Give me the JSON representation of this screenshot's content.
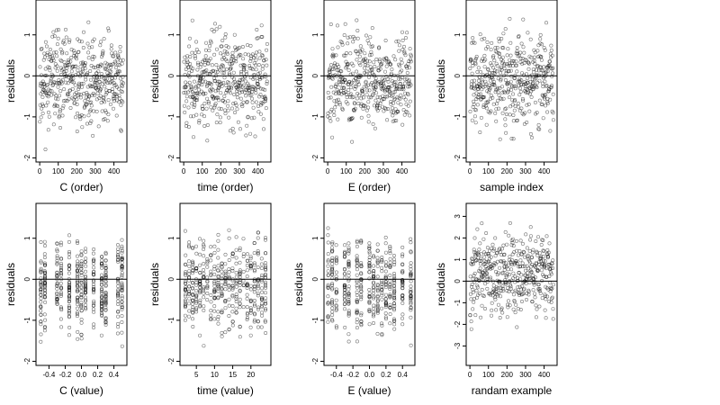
{
  "chart_data": [
    {
      "type": "scatter",
      "xlabel": "C (order)",
      "ylabel": "residuals",
      "xlim": [
        -20,
        470
      ],
      "ylim": [
        -2.1,
        1.85
      ],
      "xticks": [
        0,
        100,
        200,
        300,
        400
      ],
      "xtick_labels": [
        "0",
        "100",
        "200",
        "300",
        "400"
      ],
      "yticks": [
        -2,
        -1,
        0,
        1
      ],
      "ytick_labels": [
        "-2",
        "-1",
        "0",
        "1"
      ],
      "hline": 0,
      "x_kind": "index",
      "n": 450,
      "y_range": [
        -2.0,
        1.75
      ],
      "seed": 11
    },
    {
      "type": "scatter",
      "xlabel": "time (order)",
      "ylabel": "residuals",
      "xlim": [
        -20,
        470
      ],
      "ylim": [
        -2.1,
        1.85
      ],
      "xticks": [
        0,
        100,
        200,
        300,
        400
      ],
      "xtick_labels": [
        "0",
        "100",
        "200",
        "300",
        "400"
      ],
      "yticks": [
        -2,
        -1,
        0,
        1
      ],
      "ytick_labels": [
        "-2",
        "-1",
        "0",
        "1"
      ],
      "hline": 0,
      "x_kind": "index",
      "n": 450,
      "y_range": [
        -2.0,
        1.75
      ],
      "seed": 23
    },
    {
      "type": "scatter",
      "xlabel": "E (order)",
      "ylabel": "residuals",
      "xlim": [
        -20,
        470
      ],
      "ylim": [
        -2.1,
        1.85
      ],
      "xticks": [
        0,
        100,
        200,
        300,
        400
      ],
      "xtick_labels": [
        "0",
        "100",
        "200",
        "300",
        "400"
      ],
      "yticks": [
        -2,
        -1,
        0,
        1
      ],
      "ytick_labels": [
        "-2",
        "-1",
        "0",
        "1"
      ],
      "hline": 0,
      "x_kind": "index",
      "n": 450,
      "y_range": [
        -2.0,
        1.75
      ],
      "seed": 37
    },
    {
      "type": "scatter",
      "xlabel": "sample index",
      "ylabel": "residuals",
      "xlim": [
        -20,
        470
      ],
      "ylim": [
        -2.1,
        1.85
      ],
      "xticks": [
        0,
        100,
        200,
        300,
        400
      ],
      "xtick_labels": [
        "0",
        "100",
        "200",
        "300",
        "400"
      ],
      "yticks": [
        -2,
        -1,
        0,
        1
      ],
      "ytick_labels": [
        "-2",
        "-1",
        "0",
        "1"
      ],
      "hline": 0,
      "x_kind": "index",
      "n": 450,
      "y_range": [
        -2.0,
        1.75
      ],
      "seed": 41
    },
    {
      "type": "scatter",
      "xlabel": "C (value)",
      "ylabel": "residuals",
      "xlim": [
        -0.56,
        0.56
      ],
      "ylim": [
        -2.1,
        1.85
      ],
      "xticks": [
        -0.4,
        -0.2,
        0.0,
        0.2,
        0.4
      ],
      "xtick_labels": [
        "-0.4",
        "-0.2",
        "0.0",
        "0.2",
        "0.4"
      ],
      "yticks": [
        -2,
        -1,
        0,
        1
      ],
      "ytick_labels": [
        "-2",
        "-1",
        "0",
        "1"
      ],
      "hline": 0,
      "x_kind": "discrete",
      "x_levels": [
        -0.5,
        -0.45,
        -0.3,
        -0.25,
        -0.15,
        -0.05,
        0.0,
        0.05,
        0.15,
        0.25,
        0.3,
        0.45,
        0.5
      ],
      "n": 450,
      "y_range": [
        -2.0,
        1.75
      ],
      "seed": 53
    },
    {
      "type": "scatter",
      "xlabel": "time (value)",
      "ylabel": "residuals",
      "xlim": [
        0.5,
        25.5
      ],
      "ylim": [
        -2.1,
        1.85
      ],
      "xticks": [
        5,
        10,
        15,
        20
      ],
      "xtick_labels": [
        "5",
        "10",
        "15",
        "20"
      ],
      "yticks": [
        -2,
        -1,
        0,
        1
      ],
      "ytick_labels": [
        "-2",
        "-1",
        "0",
        "1"
      ],
      "hline": 0,
      "x_kind": "discrete",
      "x_levels": [
        2,
        3,
        4,
        5,
        6,
        7,
        8,
        9,
        10,
        11,
        12,
        13,
        14,
        15,
        16,
        17,
        18,
        19,
        20,
        21,
        22,
        23,
        24
      ],
      "n": 450,
      "y_range": [
        -2.0,
        1.75
      ],
      "seed": 67
    },
    {
      "type": "scatter",
      "xlabel": "E (value)",
      "ylabel": "residuals",
      "xlim": [
        -0.55,
        0.55
      ],
      "ylim": [
        -2.1,
        1.85
      ],
      "xticks": [
        -0.4,
        -0.2,
        0.0,
        0.2,
        0.4
      ],
      "xtick_labels": [
        "-0.4",
        "-0.2",
        "0.0",
        "0.2",
        "0.4"
      ],
      "yticks": [
        -2,
        -1,
        0,
        1
      ],
      "ytick_labels": [
        "-2",
        "-1",
        "0",
        "1"
      ],
      "hline": 0,
      "x_kind": "discrete",
      "x_levels": [
        -0.5,
        -0.45,
        -0.4,
        -0.3,
        -0.25,
        -0.15,
        -0.1,
        0.0,
        0.05,
        0.1,
        0.15,
        0.2,
        0.25,
        0.3,
        0.4,
        0.5
      ],
      "n": 450,
      "y_range": [
        -2.0,
        1.75
      ],
      "seed": 79
    },
    {
      "type": "scatter",
      "xlabel": "randam example",
      "ylabel": "residuals",
      "xlim": [
        -20,
        470
      ],
      "ylim": [
        -3.9,
        3.6
      ],
      "xticks": [
        0,
        100,
        200,
        300,
        400
      ],
      "xtick_labels": [
        "0",
        "100",
        "200",
        "300",
        "400"
      ],
      "yticks": [
        -3,
        -2,
        -1,
        0,
        1,
        2,
        3
      ],
      "ytick_labels": [
        "-3",
        "-2",
        "-1",
        "0",
        "1",
        "2",
        "3"
      ],
      "hline": 0,
      "x_kind": "index",
      "n": 450,
      "y_range": [
        -2.9,
        3.4
      ],
      "seed": 97
    }
  ]
}
